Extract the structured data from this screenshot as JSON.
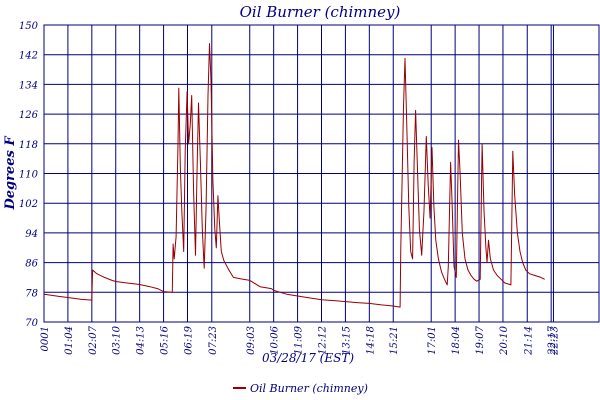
{
  "chart_data": {
    "type": "line",
    "title": "Oil Burner (chimney)",
    "xlabel": "03/28/17 (EST)",
    "ylabel": "Degrees F",
    "ylim": [
      70,
      150
    ],
    "yticks": [
      70,
      78,
      86,
      94,
      102,
      110,
      118,
      126,
      134,
      142,
      150
    ],
    "xlim": [
      1,
      1463
    ],
    "xticks": [
      {
        "label": "0001",
        "t": 1
      },
      {
        "label": "01:04",
        "t": 64
      },
      {
        "label": "02:07",
        "t": 127
      },
      {
        "label": "03:10",
        "t": 190
      },
      {
        "label": "04:13",
        "t": 253
      },
      {
        "label": "05:16",
        "t": 316
      },
      {
        "label": "06:19",
        "t": 379
      },
      {
        "label": "07:23",
        "t": 443
      },
      {
        "label": "09:03",
        "t": 543
      },
      {
        "label": "10:06",
        "t": 606
      },
      {
        "label": "11:09",
        "t": 669
      },
      {
        "label": "12:12",
        "t": 732
      },
      {
        "label": "13:15",
        "t": 795
      },
      {
        "label": "14:18",
        "t": 858
      },
      {
        "label": "15:21",
        "t": 921
      },
      {
        "label": "17:01",
        "t": 1021
      },
      {
        "label": "18:04",
        "t": 1084
      },
      {
        "label": "19:07",
        "t": 1147
      },
      {
        "label": "20:10",
        "t": 1210
      },
      {
        "label": "21:14",
        "t": 1274
      },
      {
        "label": "22:17",
        "t": 1337
      },
      {
        "label": "22:23",
        "t": 1343
      }
    ],
    "grid": true,
    "legend": "bottom-center",
    "colors": {
      "line": "#990000",
      "grid": "#000080",
      "text": "#000080"
    },
    "series": [
      {
        "name": "Oil Burner (chimney)",
        "points": [
          [
            1,
            77.5
          ],
          [
            20,
            77.2
          ],
          [
            40,
            76.9
          ],
          [
            64,
            76.6
          ],
          [
            100,
            76.1
          ],
          [
            127,
            75.9
          ],
          [
            129,
            84.0
          ],
          [
            140,
            83.0
          ],
          [
            160,
            82.0
          ],
          [
            180,
            81.2
          ],
          [
            190,
            80.9
          ],
          [
            220,
            80.5
          ],
          [
            253,
            80.1
          ],
          [
            280,
            79.5
          ],
          [
            300,
            79.0
          ],
          [
            316,
            78.2
          ],
          [
            339,
            78.0
          ],
          [
            341,
            91.0
          ],
          [
            344,
            87.0
          ],
          [
            349,
            93.0
          ],
          [
            354,
            118.0
          ],
          [
            356,
            133.0
          ],
          [
            360,
            112.0
          ],
          [
            364,
            100.0
          ],
          [
            369,
            89.0
          ],
          [
            373,
            116.0
          ],
          [
            378,
            132.0
          ],
          [
            382,
            118.0
          ],
          [
            386,
            123.0
          ],
          [
            390,
            131.0
          ],
          [
            395,
            105.0
          ],
          [
            400,
            88.0
          ],
          [
            404,
            110.0
          ],
          [
            408,
            129.0
          ],
          [
            413,
            113.0
          ],
          [
            418,
            95.0
          ],
          [
            423,
            84.5
          ],
          [
            428,
            101.0
          ],
          [
            433,
            131.0
          ],
          [
            437,
            145.0
          ],
          [
            441,
            135.0
          ],
          [
            446,
            108.0
          ],
          [
            451,
            95.0
          ],
          [
            455,
            90.0
          ],
          [
            459,
            104.0
          ],
          [
            463,
            97.0
          ],
          [
            468,
            89.0
          ],
          [
            475,
            86.5
          ],
          [
            488,
            84.0
          ],
          [
            500,
            82.0
          ],
          [
            520,
            81.6
          ],
          [
            543,
            81.2
          ],
          [
            570,
            79.5
          ],
          [
            600,
            79.0
          ],
          [
            606,
            78.5
          ],
          [
            640,
            77.5
          ],
          [
            669,
            77.0
          ],
          [
            700,
            76.5
          ],
          [
            732,
            76.0
          ],
          [
            770,
            75.7
          ],
          [
            795,
            75.5
          ],
          [
            830,
            75.2
          ],
          [
            858,
            75.0
          ],
          [
            890,
            74.6
          ],
          [
            921,
            74.3
          ],
          [
            939,
            74.0
          ],
          [
            941,
            90.0
          ],
          [
            948,
            128.0
          ],
          [
            952,
            141.0
          ],
          [
            956,
            126.0
          ],
          [
            962,
            101.0
          ],
          [
            967,
            89.0
          ],
          [
            972,
            87.0
          ],
          [
            976,
            113.0
          ],
          [
            980,
            127.0
          ],
          [
            985,
            111.0
          ],
          [
            990,
            95.0
          ],
          [
            996,
            88.0
          ],
          [
            1002,
            100.0
          ],
          [
            1008,
            120.0
          ],
          [
            1013,
            107.0
          ],
          [
            1018,
            98.0
          ],
          [
            1023,
            117.0
          ],
          [
            1028,
            101.0
          ],
          [
            1033,
            92.0
          ],
          [
            1040,
            87.0
          ],
          [
            1048,
            83.5
          ],
          [
            1056,
            81.5
          ],
          [
            1063,
            80.0
          ],
          [
            1066,
            85.0
          ],
          [
            1072,
            113.0
          ],
          [
            1076,
            102.0
          ],
          [
            1081,
            85.0
          ],
          [
            1087,
            82.0
          ],
          [
            1093,
            119.0
          ],
          [
            1097,
            110.0
          ],
          [
            1103,
            94.0
          ],
          [
            1110,
            87.0
          ],
          [
            1118,
            84.0
          ],
          [
            1126,
            82.5
          ],
          [
            1134,
            81.5
          ],
          [
            1141,
            81.0
          ],
          [
            1150,
            81.5
          ],
          [
            1155,
            118.0
          ],
          [
            1160,
            100.0
          ],
          [
            1165,
            90.0
          ],
          [
            1168,
            86.0
          ],
          [
            1172,
            92.0
          ],
          [
            1177,
            87.0
          ],
          [
            1185,
            84.0
          ],
          [
            1195,
            82.5
          ],
          [
            1205,
            81.5
          ],
          [
            1215,
            80.5
          ],
          [
            1225,
            80.2
          ],
          [
            1231,
            80.0
          ],
          [
            1236,
            116.0
          ],
          [
            1241,
            104.0
          ],
          [
            1248,
            94.0
          ],
          [
            1255,
            89.0
          ],
          [
            1262,
            86.0
          ],
          [
            1270,
            84.0
          ],
          [
            1280,
            83.0
          ],
          [
            1295,
            82.5
          ],
          [
            1310,
            82.0
          ],
          [
            1320,
            81.5
          ]
        ]
      }
    ]
  }
}
